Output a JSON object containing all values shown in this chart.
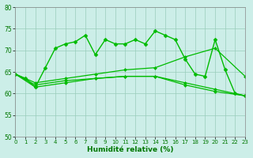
{
  "title": "",
  "xlabel": "Humidité relative (%)",
  "ylabel": "",
  "xlim": [
    0,
    23
  ],
  "ylim": [
    50,
    80
  ],
  "yticks": [
    50,
    55,
    60,
    65,
    70,
    75,
    80
  ],
  "xticks": [
    0,
    1,
    2,
    3,
    4,
    5,
    6,
    7,
    8,
    9,
    10,
    11,
    12,
    13,
    14,
    15,
    16,
    17,
    18,
    19,
    20,
    21,
    22,
    23
  ],
  "background_color": "#cceee8",
  "line_color": "#00bb00",
  "grid_color": "#99ccbb",
  "series": [
    {
      "x": [
        0,
        1,
        2,
        3,
        4,
        5,
        6,
        7,
        8,
        9,
        10,
        11,
        12,
        13,
        14,
        15,
        16,
        17,
        18,
        19,
        20,
        21,
        22,
        23
      ],
      "y": [
        64.5,
        63.5,
        61.5,
        66.0,
        70.5,
        71.5,
        72.0,
        73.5,
        69.0,
        72.5,
        71.5,
        71.5,
        72.5,
        71.5,
        74.5,
        73.5,
        72.5,
        68.0,
        64.5,
        64.0,
        72.5,
        65.5,
        60.0,
        59.5
      ],
      "marker": "D",
      "markersize": 2.5,
      "linewidth": 1.0
    },
    {
      "x": [
        0,
        2,
        5,
        8,
        11,
        14,
        17,
        20,
        23
      ],
      "y": [
        64.5,
        62.5,
        63.5,
        64.5,
        65.5,
        66.0,
        68.5,
        70.5,
        64.0
      ],
      "marker": "D",
      "markersize": 2.0,
      "linewidth": 0.9
    },
    {
      "x": [
        0,
        2,
        5,
        8,
        11,
        14,
        17,
        20,
        23
      ],
      "y": [
        64.5,
        62.0,
        63.0,
        63.5,
        64.0,
        64.0,
        62.5,
        61.0,
        59.5
      ],
      "marker": "D",
      "markersize": 2.0,
      "linewidth": 0.9
    },
    {
      "x": [
        0,
        2,
        5,
        8,
        11,
        14,
        17,
        20,
        23
      ],
      "y": [
        64.5,
        61.5,
        62.5,
        63.5,
        64.0,
        64.0,
        62.0,
        60.5,
        59.5
      ],
      "marker": "D",
      "markersize": 2.0,
      "linewidth": 0.9
    }
  ]
}
